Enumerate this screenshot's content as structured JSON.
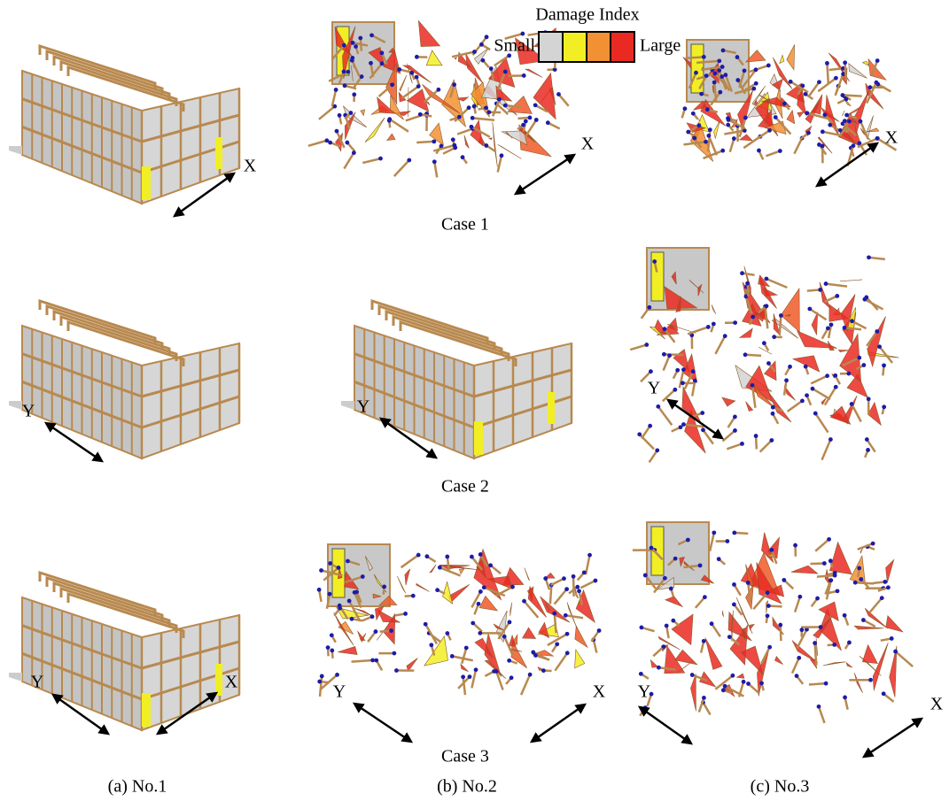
{
  "legend": {
    "title": "Damage Index",
    "low": "Small",
    "high": "Large"
  },
  "rows": [
    {
      "case": "Case 1",
      "panels": [
        {
          "arrows": [
            "X"
          ]
        },
        {
          "arrows": [
            "X"
          ]
        },
        {
          "arrows": [
            "X"
          ]
        }
      ]
    },
    {
      "case": "Case 2",
      "panels": [
        {
          "arrows": [
            "Y"
          ]
        },
        {
          "arrows": [
            "Y"
          ]
        },
        {
          "arrows": [
            "Y"
          ]
        }
      ]
    },
    {
      "case": "Case 3",
      "panels": [
        {
          "arrows": [
            "Y",
            "X"
          ]
        },
        {
          "arrows": [
            "Y",
            "X"
          ]
        },
        {
          "arrows": [
            "Y",
            "X"
          ]
        }
      ]
    }
  ],
  "columns": [
    "(a) No.1",
    "(b) No.2",
    "(c) No.3"
  ]
}
